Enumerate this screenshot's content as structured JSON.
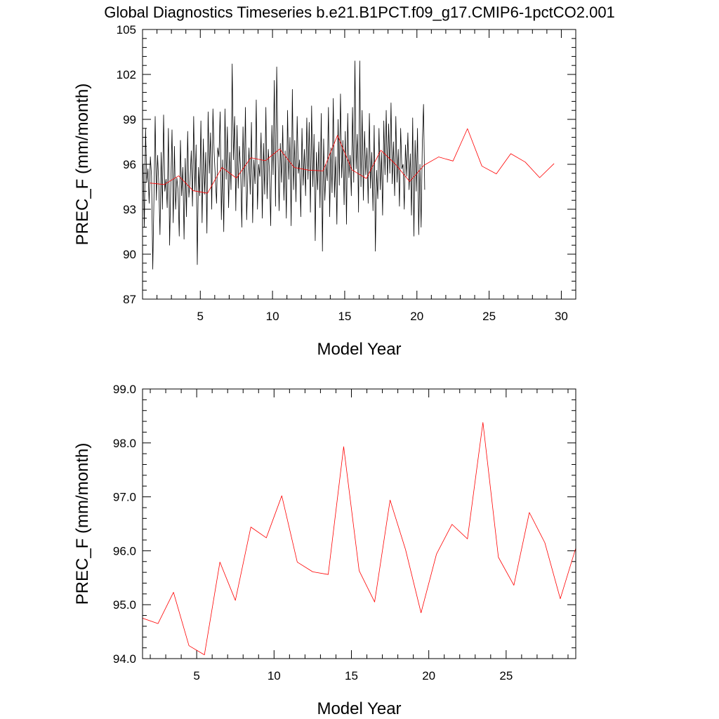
{
  "title": "Global Diagnostics Timeseries b.e21.B1PCT.f09_g17.CMIP6-1pctCO2.001",
  "chart_data": [
    {
      "type": "line",
      "xlabel": "Model Year",
      "ylabel": "PREC_F (mm/month)",
      "xlim": [
        1,
        31
      ],
      "ylim": [
        87,
        105
      ],
      "xticks": [
        5,
        10,
        15,
        20,
        25,
        30
      ],
      "yticks": [
        87,
        90,
        93,
        96,
        99,
        102,
        105
      ],
      "ytick_labels": [
        "87",
        "90",
        "93",
        "96",
        "99",
        "102",
        "105"
      ],
      "series": [
        {
          "color": "#000000",
          "x_start": 1.0417,
          "x_step": 0.08333,
          "values": [
            96.0,
            91.8,
            98.4,
            94.8,
            95.7,
            93.4,
            96.5,
            95.2,
            89.0,
            93.8,
            99.2,
            93.6,
            96.6,
            94.7,
            91.3,
            96.8,
            93.0,
            99.3,
            94.2,
            95.0,
            93.1,
            98.4,
            90.6,
            94.7,
            98.3,
            92.1,
            97.2,
            93.0,
            95.1,
            94.3,
            91.2,
            97.6,
            93.9,
            95.8,
            91.0,
            96.4,
            92.5,
            98.2,
            93.8,
            94.9,
            96.9,
            93.2,
            99.2,
            94.2,
            97.3,
            89.3,
            95.8,
            93.9,
            98.9,
            92.1,
            97.7,
            94.0,
            96.8,
            91.4,
            99.5,
            95.4,
            98.1,
            93.0,
            99.7,
            96.8,
            95.1,
            93.4,
            97.1,
            96.5,
            99.5,
            92.3,
            96.3,
            91.5,
            99.7,
            95.0,
            98.5,
            93.1,
            96.8,
            94.3,
            102.7,
            96.3,
            99.2,
            92.9,
            98.6,
            94.4,
            97.2,
            95.7,
            91.8,
            98.5,
            94.5,
            99.8,
            92.3,
            95.2,
            97.1,
            94.0,
            98.8,
            92.1,
            96.3,
            94.7,
            100.3,
            93.0,
            96.0,
            95.2,
            98.1,
            92.4,
            97.4,
            94.0,
            99.8,
            93.7,
            97.0,
            95.5,
            91.9,
            98.6,
            95.3,
            101.6,
            93.2,
            102.5,
            96.8,
            92.9,
            97.4,
            94.8,
            98.6,
            93.6,
            96.9,
            92.4,
            99.6,
            95.0,
            97.8,
            91.9,
            101.0,
            94.3,
            97.6,
            93.5,
            99.2,
            95.4,
            96.3,
            92.5,
            98.4,
            94.6,
            97.0,
            93.9,
            99.1,
            95.0,
            98.8,
            92.8,
            99.9,
            94.5,
            98.0,
            90.9,
            96.8,
            94.3,
            97.5,
            93.1,
            99.4,
            90.2,
            97.7,
            93.6,
            96.0,
            94.9,
            99.8,
            92.5,
            97.1,
            94.1,
            100.4,
            93.8,
            96.5,
            92.0,
            99.0,
            94.6,
            100.7,
            95.1,
            97.6,
            93.3,
            98.2,
            92.0,
            99.4,
            95.1,
            96.6,
            93.9,
            99.8,
            94.8,
            102.9,
            95.7,
            98.0,
            92.8,
            102.9,
            94.5,
            99.6,
            93.6,
            98.2,
            95.3,
            97.1,
            93.4,
            99.4,
            94.4,
            96.8,
            92.9,
            98.6,
            90.2,
            95.6,
            93.7,
            98.4,
            94.3,
            96.8,
            92.6,
            98.9,
            95.3,
            99.6,
            94.8,
            98.7,
            95.4,
            100.1,
            94.7,
            97.5,
            93.9,
            99.2,
            94.8,
            97.0,
            93.2,
            98.4,
            95.7,
            96.0,
            93.0,
            97.3,
            95.2,
            98.1,
            94.3,
            96.7,
            92.6,
            99.1,
            91.2,
            97.6,
            94.2,
            98.4,
            91.3,
            96.0,
            91.8,
            97.4,
            100.0,
            94.3
          ]
        },
        {
          "color": "#ff0000",
          "x_start": 1.5,
          "x_step": 1.0,
          "values": [
            94.75,
            94.65,
            95.23,
            94.24,
            94.07,
            95.79,
            95.08,
            96.44,
            96.24,
            97.02,
            95.79,
            95.61,
            95.56,
            97.93,
            95.63,
            95.05,
            96.94,
            96.02,
            94.85,
            95.94,
            96.49,
            96.22,
            98.38,
            95.88,
            95.36,
            96.71,
            96.15,
            95.11,
            96.05
          ]
        }
      ]
    },
    {
      "type": "line",
      "xlabel": "Model Year",
      "ylabel": "PREC_F (mm/month)",
      "xlim": [
        1.5,
        29.5
      ],
      "ylim": [
        94.0,
        99.0
      ],
      "xticks": [
        5,
        10,
        15,
        20,
        25
      ],
      "yticks": [
        94,
        95,
        96,
        97,
        98,
        99
      ],
      "ytick_labels": [
        "94.0",
        "95.0",
        "96.0",
        "97.0",
        "98.0",
        "99.0"
      ],
      "series": [
        {
          "color": "#ff0000",
          "x_start": 1.5,
          "x_step": 1.0,
          "values": [
            94.75,
            94.65,
            95.23,
            94.24,
            94.07,
            95.79,
            95.08,
            96.44,
            96.24,
            97.02,
            95.79,
            95.61,
            95.56,
            97.93,
            95.63,
            95.05,
            96.94,
            96.02,
            94.85,
            95.94,
            96.49,
            96.22,
            98.38,
            95.88,
            95.36,
            96.71,
            96.15,
            95.11,
            96.05
          ]
        }
      ]
    }
  ]
}
